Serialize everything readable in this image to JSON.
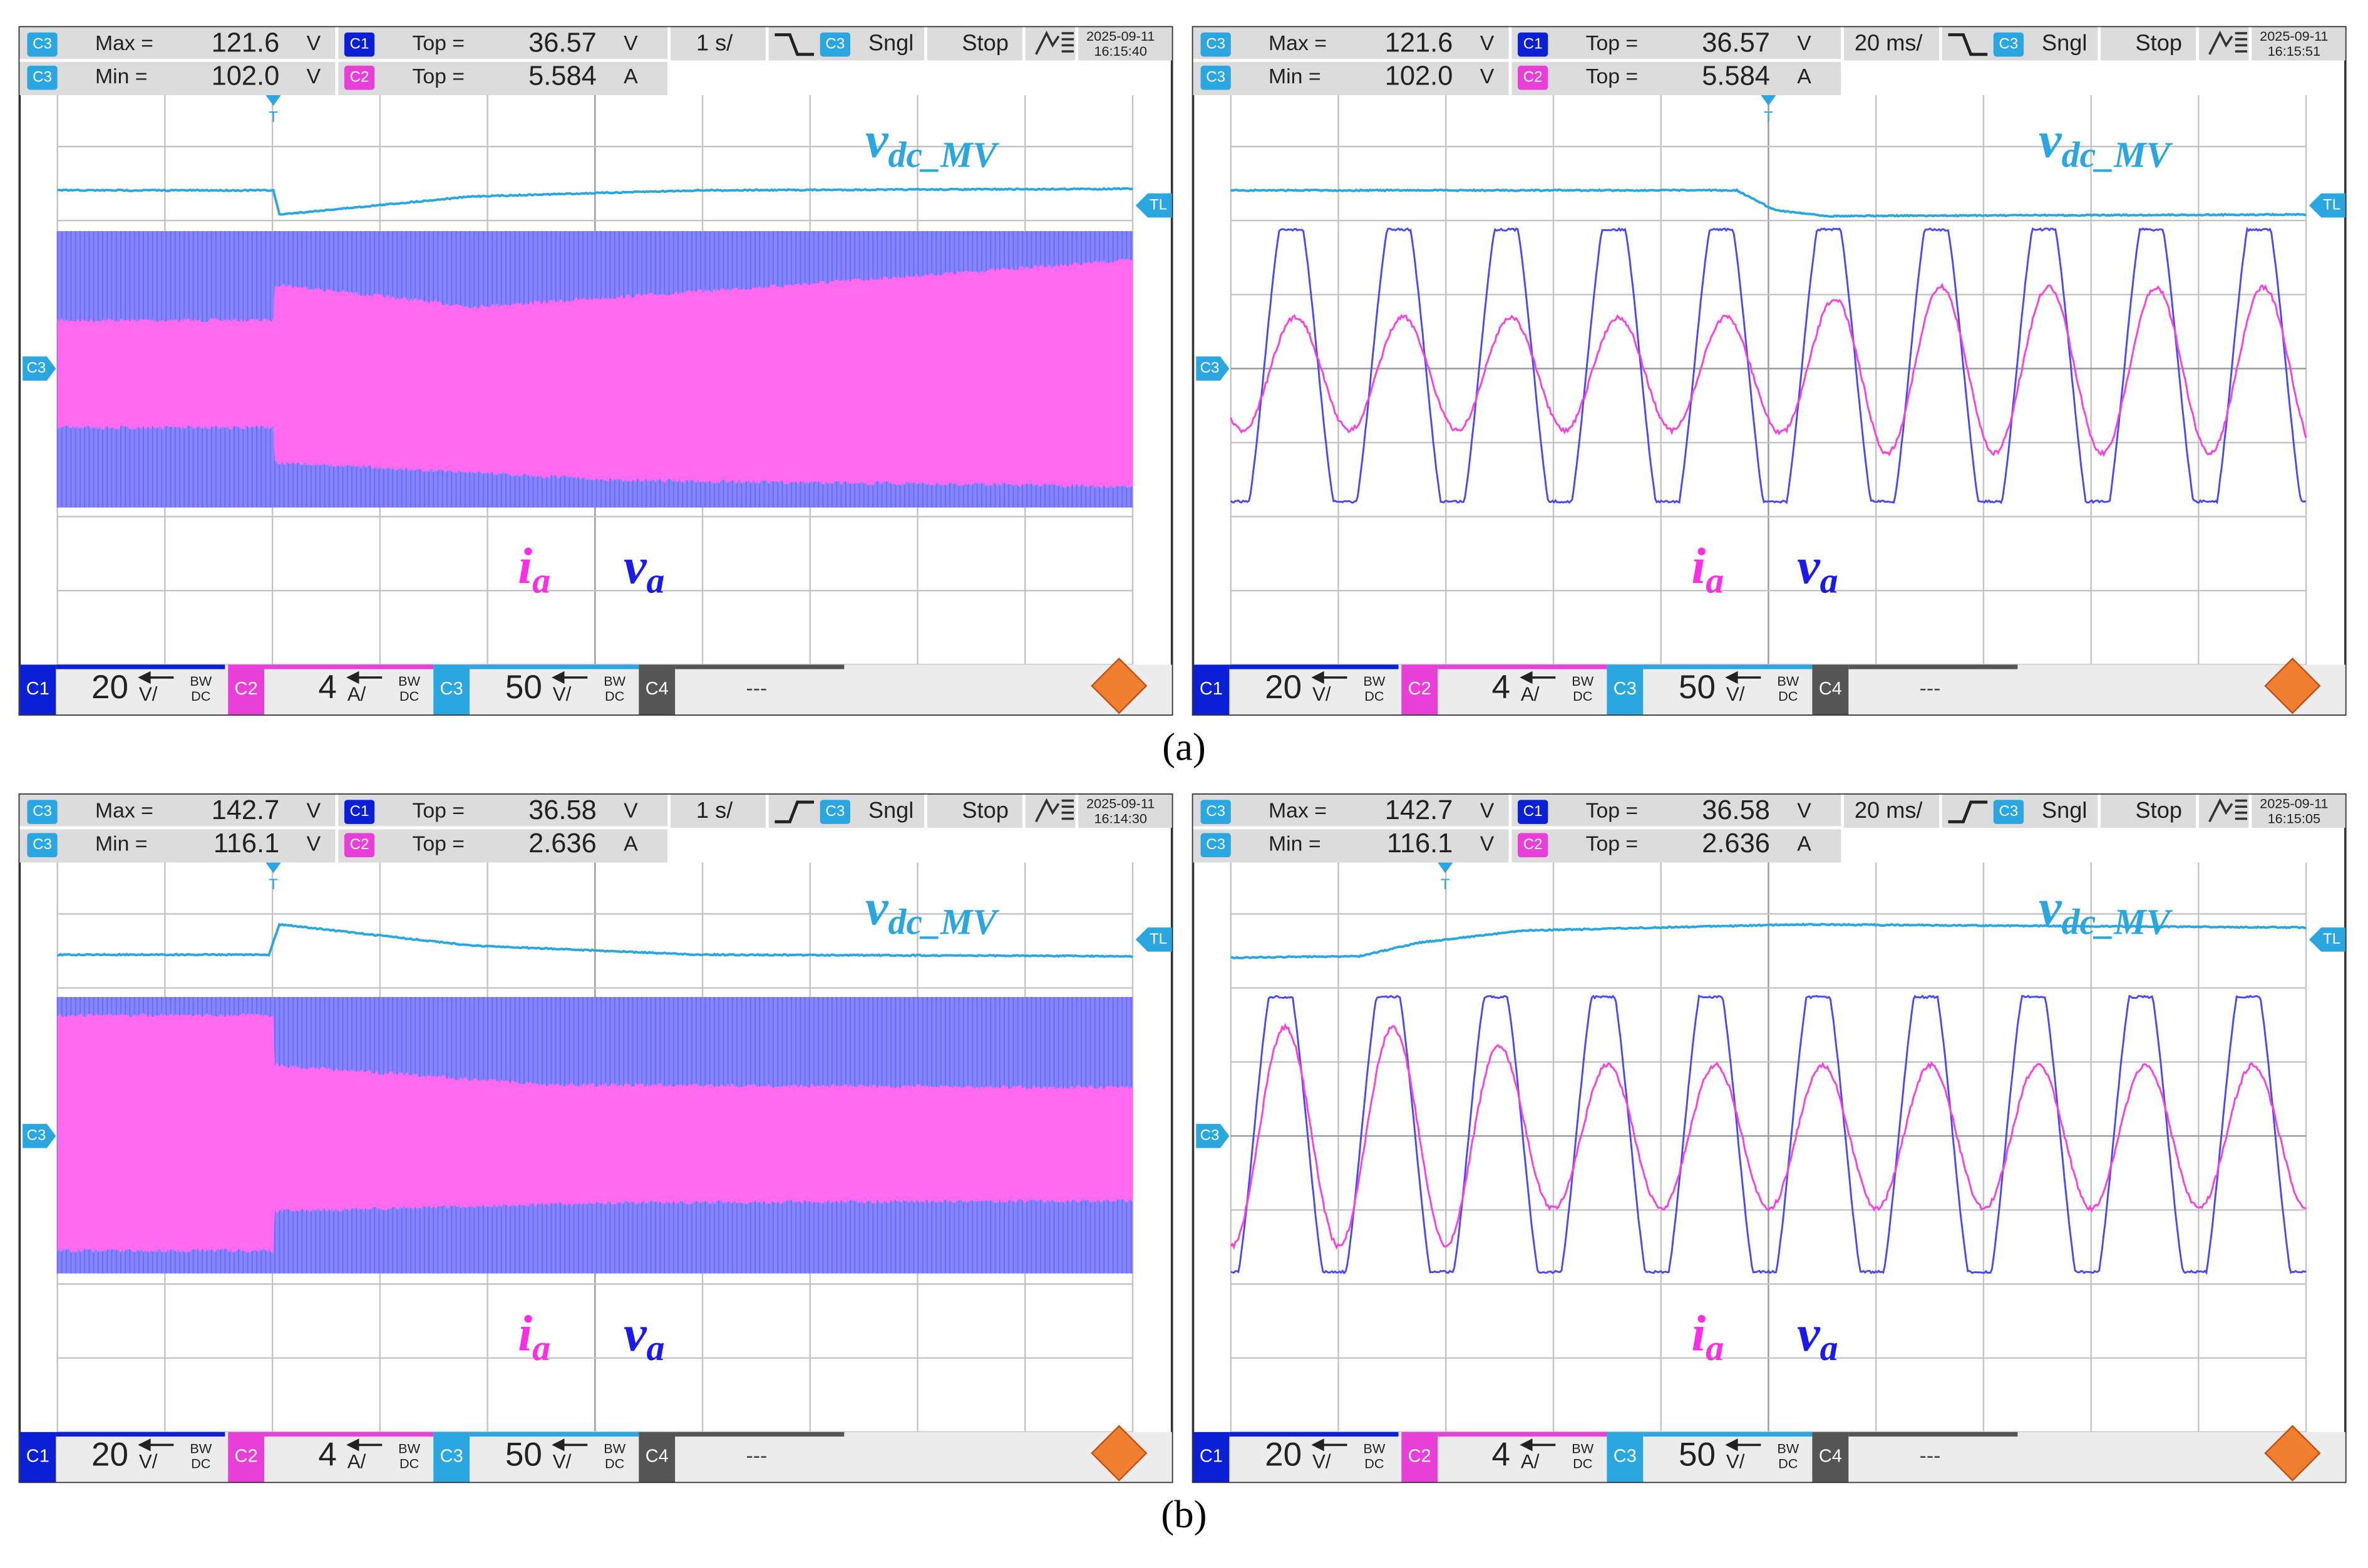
{
  "figures": [
    {
      "label": "(a)",
      "panels": [
        {
          "measurements": [
            [
              {
                "channel": "C3",
                "label": "Max =",
                "value": "121.6",
                "unit": "V"
              },
              {
                "channel": "C1",
                "label": "Top =",
                "value": "36.57",
                "unit": "V"
              }
            ],
            [
              {
                "channel": "C3",
                "label": "Min =",
                "value": "102.0",
                "unit": "V"
              },
              {
                "channel": "C2",
                "label": "Top =",
                "value": "5.584",
                "unit": "A"
              }
            ]
          ],
          "timebase": "1 s/",
          "trigger_channel": "C3",
          "acquisition": "Sngl",
          "run_state": "Stop",
          "date": "2025-09-11",
          "time": "16:15:40",
          "trigger_marker": "T",
          "level_marker": "TL",
          "offset_marker": "C3",
          "labels": {
            "vdc": {
              "base": "v",
              "sub": "dc_MV"
            },
            "ia": {
              "base": "i",
              "sub": "a"
            },
            "va": {
              "base": "v",
              "sub": "a"
            }
          },
          "channels": [
            {
              "name": "C1",
              "scale": "20",
              "unit": "V/",
              "bw": "BW",
              "coupling": "DC"
            },
            {
              "name": "C2",
              "scale": "4",
              "unit": "A/",
              "bw": "BW",
              "coupling": "DC"
            },
            {
              "name": "C3",
              "scale": "50",
              "unit": "V/",
              "bw": "BW",
              "coupling": "DC"
            },
            {
              "name": "C4",
              "scale": "---"
            }
          ]
        },
        {
          "measurements": [
            [
              {
                "channel": "C3",
                "label": "Max =",
                "value": "121.6",
                "unit": "V"
              },
              {
                "channel": "C1",
                "label": "Top =",
                "value": "36.57",
                "unit": "V"
              }
            ],
            [
              {
                "channel": "C3",
                "label": "Min =",
                "value": "102.0",
                "unit": "V"
              },
              {
                "channel": "C2",
                "label": "Top =",
                "value": "5.584",
                "unit": "A"
              }
            ]
          ],
          "timebase": "20 ms/",
          "trigger_channel": "C3",
          "acquisition": "Sngl",
          "run_state": "Stop",
          "date": "2025-09-11",
          "time": "16:15:51",
          "trigger_marker": "T",
          "level_marker": "TL",
          "offset_marker": "C3",
          "labels": {
            "vdc": {
              "base": "v",
              "sub": "dc_MV"
            },
            "ia": {
              "base": "i",
              "sub": "a"
            },
            "va": {
              "base": "v",
              "sub": "a"
            }
          },
          "channels": [
            {
              "name": "C1",
              "scale": "20",
              "unit": "V/",
              "bw": "BW",
              "coupling": "DC"
            },
            {
              "name": "C2",
              "scale": "4",
              "unit": "A/",
              "bw": "BW",
              "coupling": "DC"
            },
            {
              "name": "C3",
              "scale": "50",
              "unit": "V/",
              "bw": "BW",
              "coupling": "DC"
            },
            {
              "name": "C4",
              "scale": "---"
            }
          ]
        }
      ]
    },
    {
      "label": "(b)",
      "panels": [
        {
          "measurements": [
            [
              {
                "channel": "C3",
                "label": "Max =",
                "value": "142.7",
                "unit": "V"
              },
              {
                "channel": "C1",
                "label": "Top =",
                "value": "36.58",
                "unit": "V"
              }
            ],
            [
              {
                "channel": "C3",
                "label": "Min =",
                "value": "116.1",
                "unit": "V"
              },
              {
                "channel": "C2",
                "label": "Top =",
                "value": "2.636",
                "unit": "A"
              }
            ]
          ],
          "timebase": "1 s/",
          "trigger_channel": "C3",
          "acquisition": "Sngl",
          "run_state": "Stop",
          "date": "2025-09-11",
          "time": "16:14:30",
          "trigger_marker": "T",
          "level_marker": "TL",
          "offset_marker": "C3",
          "labels": {
            "vdc": {
              "base": "v",
              "sub": "dc_MV"
            },
            "ia": {
              "base": "i",
              "sub": "a"
            },
            "va": {
              "base": "v",
              "sub": "a"
            }
          },
          "channels": [
            {
              "name": "C1",
              "scale": "20",
              "unit": "V/",
              "bw": "BW",
              "coupling": "DC"
            },
            {
              "name": "C2",
              "scale": "4",
              "unit": "A/",
              "bw": "BW",
              "coupling": "DC"
            },
            {
              "name": "C3",
              "scale": "50",
              "unit": "V/",
              "bw": "BW",
              "coupling": "DC"
            },
            {
              "name": "C4",
              "scale": "---"
            }
          ]
        },
        {
          "measurements": [
            [
              {
                "channel": "C3",
                "label": "Max =",
                "value": "142.7",
                "unit": "V"
              },
              {
                "channel": "C1",
                "label": "Top =",
                "value": "36.58",
                "unit": "V"
              }
            ],
            [
              {
                "channel": "C3",
                "label": "Min =",
                "value": "116.1",
                "unit": "V"
              },
              {
                "channel": "C2",
                "label": "Top =",
                "value": "2.636",
                "unit": "A"
              }
            ]
          ],
          "timebase": "20 ms/",
          "trigger_channel": "C3",
          "acquisition": "Sngl",
          "run_state": "Stop",
          "date": "2025-09-11",
          "time": "16:15:05",
          "trigger_marker": "T",
          "level_marker": "TL",
          "offset_marker": "C3",
          "labels": {
            "vdc": {
              "base": "v",
              "sub": "dc_MV"
            },
            "ia": {
              "base": "i",
              "sub": "a"
            },
            "va": {
              "base": "v",
              "sub": "a"
            }
          },
          "channels": [
            {
              "name": "C1",
              "scale": "20",
              "unit": "V/",
              "bw": "BW",
              "coupling": "DC"
            },
            {
              "name": "C2",
              "scale": "4",
              "unit": "A/",
              "bw": "BW",
              "coupling": "DC"
            },
            {
              "name": "C3",
              "scale": "50",
              "unit": "V/",
              "bw": "BW",
              "coupling": "DC"
            },
            {
              "name": "C4",
              "scale": "---"
            }
          ]
        }
      ]
    }
  ]
}
